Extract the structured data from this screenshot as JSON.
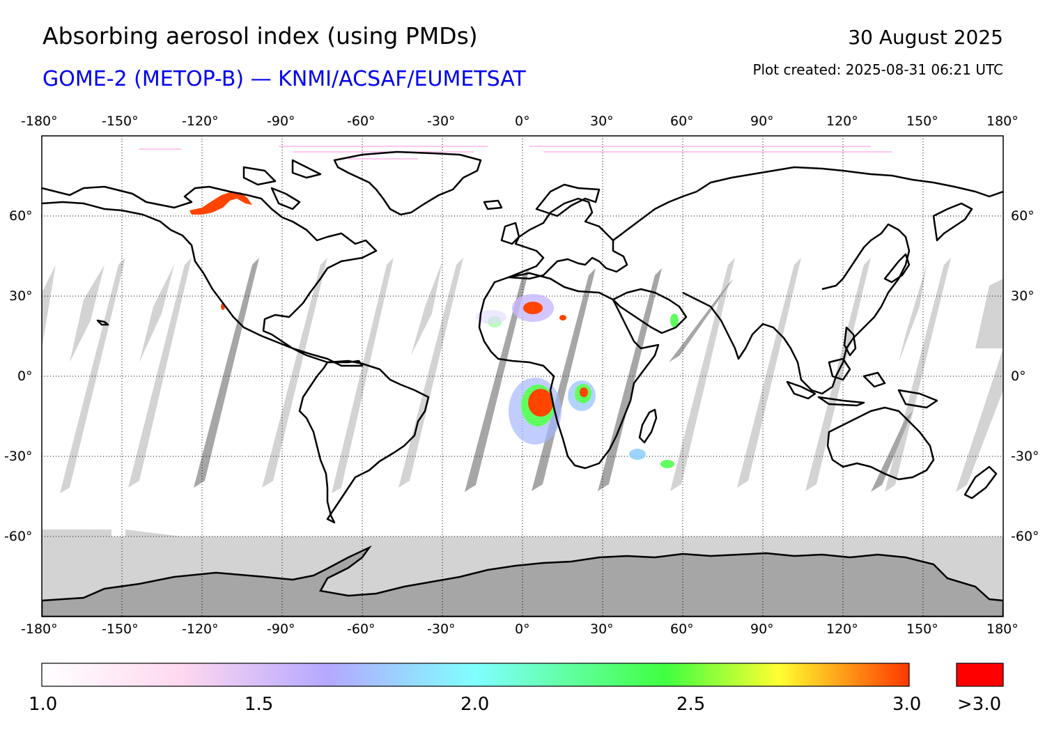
{
  "header": {
    "title": "Absorbing aerosol index (using PMDs)",
    "subtitle": "GOME-2 (METOP-B) — KNMI/ACSAF/EUMETSAT",
    "date": "30 August 2025",
    "created": "Plot created: 2025-08-31 06:21 UTC"
  },
  "axes": {
    "lon_ticks": [
      "-180°",
      "-150°",
      "-120°",
      "-90°",
      "-60°",
      "-30°",
      "0°",
      "30°",
      "60°",
      "90°",
      "120°",
      "150°",
      "180°"
    ],
    "lat_ticks": [
      "60°",
      "30°",
      "0°",
      "-30°",
      "-60°"
    ]
  },
  "colorbar": {
    "tick_labels": [
      "1.0",
      "1.5",
      "2.0",
      "2.5",
      "3.0"
    ],
    "overflow_label": ">3.0",
    "stops": [
      "#ffffff",
      "#ffd8f0",
      "#b4a8ff",
      "#80ffff",
      "#40ff40",
      "#ffff30",
      "#ff3800"
    ],
    "overflow_color": "#ff0000"
  },
  "colors": {
    "no_data": "#d3d3d3",
    "no_data_dark": "#a6a6a6",
    "coast": "#000000"
  },
  "map_data": {
    "lon_range": [
      -180,
      180
    ],
    "lat_range": [
      -90,
      90
    ],
    "aerosol_hotspots": [
      {
        "region": "Western North America",
        "lon": -108,
        "lat": 63,
        "level": 3.0
      },
      {
        "region": "West Africa / Sahara",
        "lon": 5,
        "lat": 25,
        "level": 3.0
      },
      {
        "region": "Central Africa (Congo basin)",
        "lon": 7,
        "lat": -10,
        "level": 3.0
      },
      {
        "region": "Central Africa (Angola/Zambia)",
        "lon": 23,
        "lat": -6,
        "level": 2.8
      }
    ]
  }
}
